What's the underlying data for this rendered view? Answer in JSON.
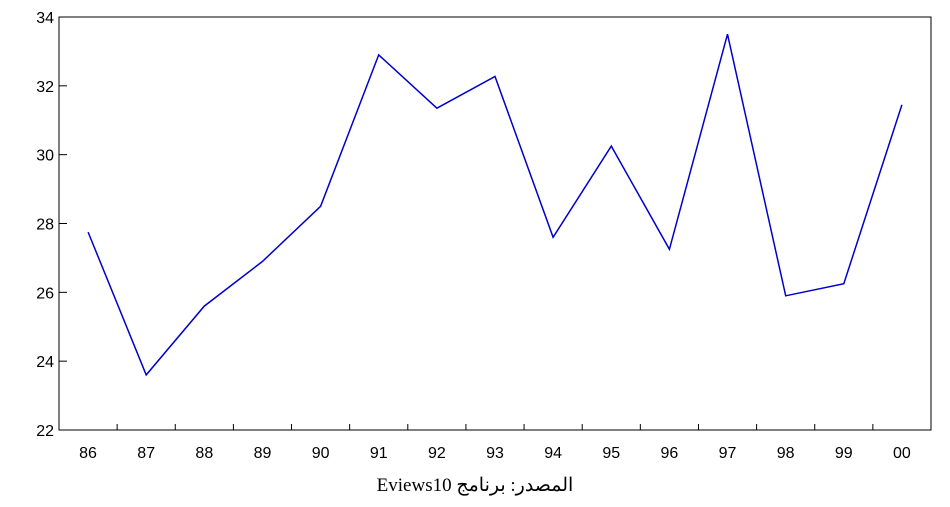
{
  "chart_data": {
    "type": "line",
    "title": "",
    "xlabel": "",
    "ylabel": "",
    "categories": [
      "86",
      "87",
      "88",
      "89",
      "90",
      "91",
      "92",
      "93",
      "94",
      "95",
      "96",
      "97",
      "98",
      "99",
      "00"
    ],
    "series": [
      {
        "values": [
          27.75,
          23.6,
          25.6,
          26.9,
          28.5,
          32.9,
          31.35,
          32.27,
          27.6,
          30.25,
          27.25,
          33.5,
          25.9,
          26.25,
          31.45
        ],
        "color": "#0000cc"
      }
    ],
    "ylim": [
      22,
      34
    ],
    "yticks": [
      "22",
      "24",
      "26",
      "28",
      "30",
      "32",
      "34"
    ],
    "grid": false,
    "legend": "none"
  },
  "source_note": "المصدر: برنامج Eviews10"
}
